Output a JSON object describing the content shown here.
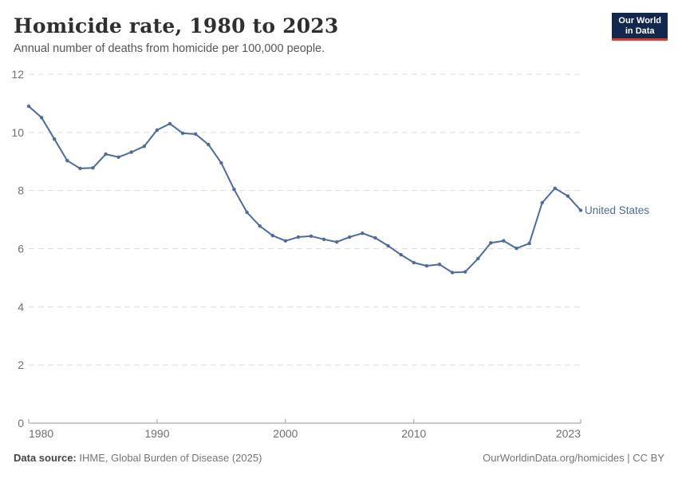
{
  "header": {
    "title": "Homicide rate, 1980 to 2023",
    "subtitle": "Annual number of deaths from homicide per 100,000 people."
  },
  "logo": {
    "line1": "Our World",
    "line2": "in Data",
    "bg_color": "#12294d",
    "accent_color": "#d93a31"
  },
  "footer": {
    "source_label": "Data source:",
    "source_text": " IHME, Global Burden of Disease (2025)",
    "link_text": "OurWorldinData.org/homicides | CC BY"
  },
  "chart_data": {
    "type": "line",
    "title": "Homicide rate, 1980 to 2023",
    "subtitle": "Annual number of deaths from homicide per 100,000 people.",
    "xlabel": "",
    "ylabel": "",
    "xlim": [
      1980,
      2023
    ],
    "ylim": [
      0,
      12
    ],
    "x_ticks": [
      1980,
      1990,
      2000,
      2010,
      2023
    ],
    "y_ticks": [
      0,
      2,
      4,
      6,
      8,
      10,
      12
    ],
    "grid": "dashed-horizontal",
    "legend_position": "end-of-line",
    "line_color": "#4c6ba0",
    "series": [
      {
        "name": "United States",
        "x": [
          1980,
          1981,
          1982,
          1983,
          1984,
          1985,
          1986,
          1987,
          1988,
          1989,
          1990,
          1991,
          1992,
          1993,
          1994,
          1995,
          1996,
          1997,
          1998,
          1999,
          2000,
          2001,
          2002,
          2003,
          2004,
          2005,
          2006,
          2007,
          2008,
          2009,
          2010,
          2011,
          2012,
          2013,
          2014,
          2015,
          2016,
          2017,
          2018,
          2019,
          2020,
          2021,
          2022,
          2023
        ],
        "values": [
          10.9,
          10.51,
          9.77,
          9.03,
          8.76,
          8.78,
          9.25,
          9.15,
          9.32,
          9.52,
          10.08,
          10.3,
          9.97,
          9.94,
          9.58,
          8.95,
          8.04,
          7.25,
          6.78,
          6.45,
          6.27,
          6.4,
          6.43,
          6.32,
          6.23,
          6.4,
          6.53,
          6.37,
          6.1,
          5.79,
          5.52,
          5.41,
          5.46,
          5.18,
          5.2,
          5.66,
          6.2,
          6.27,
          6.01,
          6.18,
          7.58,
          8.08,
          7.81,
          7.32
        ]
      }
    ]
  }
}
